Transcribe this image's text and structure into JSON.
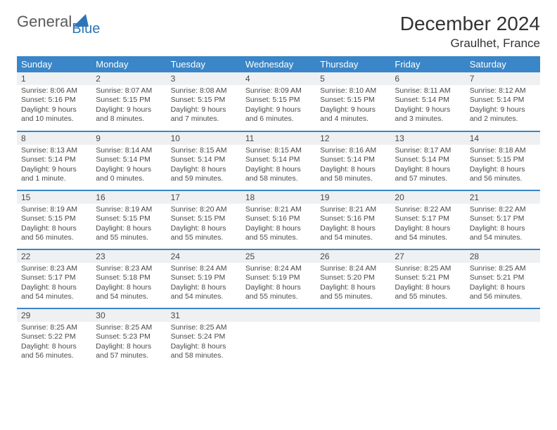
{
  "brand": {
    "general": "General",
    "blue": "Blue"
  },
  "title": "December 2024",
  "location": "Graulhet, France",
  "colors": {
    "header_bg": "#3a86c8",
    "header_text": "#ffffff",
    "daynum_bg": "#eef0f2",
    "border": "#3a86c8",
    "text": "#4a4a4a",
    "logo_blue": "#2a76b8",
    "logo_gray": "#5a5a5a"
  },
  "weekdays": [
    "Sunday",
    "Monday",
    "Tuesday",
    "Wednesday",
    "Thursday",
    "Friday",
    "Saturday"
  ],
  "days": [
    {
      "n": "1",
      "sunrise": "Sunrise: 8:06 AM",
      "sunset": "Sunset: 5:16 PM",
      "dl1": "Daylight: 9 hours",
      "dl2": "and 10 minutes."
    },
    {
      "n": "2",
      "sunrise": "Sunrise: 8:07 AM",
      "sunset": "Sunset: 5:15 PM",
      "dl1": "Daylight: 9 hours",
      "dl2": "and 8 minutes."
    },
    {
      "n": "3",
      "sunrise": "Sunrise: 8:08 AM",
      "sunset": "Sunset: 5:15 PM",
      "dl1": "Daylight: 9 hours",
      "dl2": "and 7 minutes."
    },
    {
      "n": "4",
      "sunrise": "Sunrise: 8:09 AM",
      "sunset": "Sunset: 5:15 PM",
      "dl1": "Daylight: 9 hours",
      "dl2": "and 6 minutes."
    },
    {
      "n": "5",
      "sunrise": "Sunrise: 8:10 AM",
      "sunset": "Sunset: 5:15 PM",
      "dl1": "Daylight: 9 hours",
      "dl2": "and 4 minutes."
    },
    {
      "n": "6",
      "sunrise": "Sunrise: 8:11 AM",
      "sunset": "Sunset: 5:14 PM",
      "dl1": "Daylight: 9 hours",
      "dl2": "and 3 minutes."
    },
    {
      "n": "7",
      "sunrise": "Sunrise: 8:12 AM",
      "sunset": "Sunset: 5:14 PM",
      "dl1": "Daylight: 9 hours",
      "dl2": "and 2 minutes."
    },
    {
      "n": "8",
      "sunrise": "Sunrise: 8:13 AM",
      "sunset": "Sunset: 5:14 PM",
      "dl1": "Daylight: 9 hours",
      "dl2": "and 1 minute."
    },
    {
      "n": "9",
      "sunrise": "Sunrise: 8:14 AM",
      "sunset": "Sunset: 5:14 PM",
      "dl1": "Daylight: 9 hours",
      "dl2": "and 0 minutes."
    },
    {
      "n": "10",
      "sunrise": "Sunrise: 8:15 AM",
      "sunset": "Sunset: 5:14 PM",
      "dl1": "Daylight: 8 hours",
      "dl2": "and 59 minutes."
    },
    {
      "n": "11",
      "sunrise": "Sunrise: 8:15 AM",
      "sunset": "Sunset: 5:14 PM",
      "dl1": "Daylight: 8 hours",
      "dl2": "and 58 minutes."
    },
    {
      "n": "12",
      "sunrise": "Sunrise: 8:16 AM",
      "sunset": "Sunset: 5:14 PM",
      "dl1": "Daylight: 8 hours",
      "dl2": "and 58 minutes."
    },
    {
      "n": "13",
      "sunrise": "Sunrise: 8:17 AM",
      "sunset": "Sunset: 5:14 PM",
      "dl1": "Daylight: 8 hours",
      "dl2": "and 57 minutes."
    },
    {
      "n": "14",
      "sunrise": "Sunrise: 8:18 AM",
      "sunset": "Sunset: 5:15 PM",
      "dl1": "Daylight: 8 hours",
      "dl2": "and 56 minutes."
    },
    {
      "n": "15",
      "sunrise": "Sunrise: 8:19 AM",
      "sunset": "Sunset: 5:15 PM",
      "dl1": "Daylight: 8 hours",
      "dl2": "and 56 minutes."
    },
    {
      "n": "16",
      "sunrise": "Sunrise: 8:19 AM",
      "sunset": "Sunset: 5:15 PM",
      "dl1": "Daylight: 8 hours",
      "dl2": "and 55 minutes."
    },
    {
      "n": "17",
      "sunrise": "Sunrise: 8:20 AM",
      "sunset": "Sunset: 5:15 PM",
      "dl1": "Daylight: 8 hours",
      "dl2": "and 55 minutes."
    },
    {
      "n": "18",
      "sunrise": "Sunrise: 8:21 AM",
      "sunset": "Sunset: 5:16 PM",
      "dl1": "Daylight: 8 hours",
      "dl2": "and 55 minutes."
    },
    {
      "n": "19",
      "sunrise": "Sunrise: 8:21 AM",
      "sunset": "Sunset: 5:16 PM",
      "dl1": "Daylight: 8 hours",
      "dl2": "and 54 minutes."
    },
    {
      "n": "20",
      "sunrise": "Sunrise: 8:22 AM",
      "sunset": "Sunset: 5:17 PM",
      "dl1": "Daylight: 8 hours",
      "dl2": "and 54 minutes."
    },
    {
      "n": "21",
      "sunrise": "Sunrise: 8:22 AM",
      "sunset": "Sunset: 5:17 PM",
      "dl1": "Daylight: 8 hours",
      "dl2": "and 54 minutes."
    },
    {
      "n": "22",
      "sunrise": "Sunrise: 8:23 AM",
      "sunset": "Sunset: 5:17 PM",
      "dl1": "Daylight: 8 hours",
      "dl2": "and 54 minutes."
    },
    {
      "n": "23",
      "sunrise": "Sunrise: 8:23 AM",
      "sunset": "Sunset: 5:18 PM",
      "dl1": "Daylight: 8 hours",
      "dl2": "and 54 minutes."
    },
    {
      "n": "24",
      "sunrise": "Sunrise: 8:24 AM",
      "sunset": "Sunset: 5:19 PM",
      "dl1": "Daylight: 8 hours",
      "dl2": "and 54 minutes."
    },
    {
      "n": "25",
      "sunrise": "Sunrise: 8:24 AM",
      "sunset": "Sunset: 5:19 PM",
      "dl1": "Daylight: 8 hours",
      "dl2": "and 55 minutes."
    },
    {
      "n": "26",
      "sunrise": "Sunrise: 8:24 AM",
      "sunset": "Sunset: 5:20 PM",
      "dl1": "Daylight: 8 hours",
      "dl2": "and 55 minutes."
    },
    {
      "n": "27",
      "sunrise": "Sunrise: 8:25 AM",
      "sunset": "Sunset: 5:21 PM",
      "dl1": "Daylight: 8 hours",
      "dl2": "and 55 minutes."
    },
    {
      "n": "28",
      "sunrise": "Sunrise: 8:25 AM",
      "sunset": "Sunset: 5:21 PM",
      "dl1": "Daylight: 8 hours",
      "dl2": "and 56 minutes."
    },
    {
      "n": "29",
      "sunrise": "Sunrise: 8:25 AM",
      "sunset": "Sunset: 5:22 PM",
      "dl1": "Daylight: 8 hours",
      "dl2": "and 56 minutes."
    },
    {
      "n": "30",
      "sunrise": "Sunrise: 8:25 AM",
      "sunset": "Sunset: 5:23 PM",
      "dl1": "Daylight: 8 hours",
      "dl2": "and 57 minutes."
    },
    {
      "n": "31",
      "sunrise": "Sunrise: 8:25 AM",
      "sunset": "Sunset: 5:24 PM",
      "dl1": "Daylight: 8 hours",
      "dl2": "and 58 minutes."
    }
  ]
}
